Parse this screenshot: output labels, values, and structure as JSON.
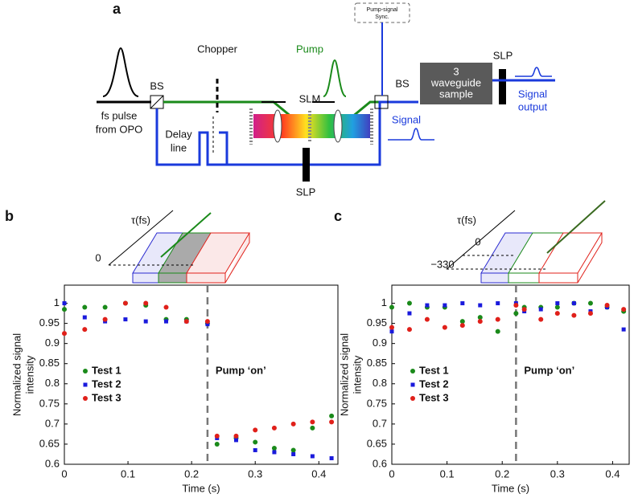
{
  "diagram": {
    "panel_label": "a",
    "source": [
      "fs pulse",
      "from OPO"
    ],
    "bs1": "BS",
    "chopper": "Chopper",
    "pump": "Pump",
    "slm": "SLM",
    "sync": [
      "Pump-signal",
      "Sync."
    ],
    "bs2": "BS",
    "sample": [
      "3",
      "waveguide",
      "sample"
    ],
    "slp_out": "SLP",
    "output": [
      "Signal",
      "output"
    ],
    "signal": "Signal",
    "delay": [
      "Delay",
      "line"
    ],
    "slp": "SLP"
  },
  "chart_data": [
    {
      "type": "scatter",
      "panel_label": "b",
      "inset_axis": "τ(fs)",
      "inset_ticks": [
        "0"
      ],
      "xlabel": "Time (s)",
      "ylabel": [
        "Normalized signal",
        "intensity"
      ],
      "annotation": "Pump ‘on’",
      "event_x": 0.225,
      "xlim": [
        0,
        0.43
      ],
      "ylim": [
        0.6,
        1.045
      ],
      "xticks": [
        0,
        0.1,
        0.2,
        0.3,
        0.4
      ],
      "yticks": [
        0.6,
        0.65,
        0.7,
        0.75,
        0.8,
        0.85,
        0.9,
        0.95,
        1
      ],
      "x": [
        0,
        0.032,
        0.064,
        0.096,
        0.128,
        0.16,
        0.192,
        0.225,
        0.24,
        0.27,
        0.3,
        0.33,
        0.36,
        0.39,
        0.42
      ],
      "series": [
        {
          "name": "Test 1",
          "color": "#1a8a1a",
          "marker": "circle",
          "values": [
            0.985,
            0.99,
            0.99,
            1.0,
            0.995,
            0.96,
            0.96,
            0.95,
            0.65,
            0.665,
            0.655,
            0.64,
            0.635,
            0.69,
            0.72
          ]
        },
        {
          "name": "Test 2",
          "color": "#1a1adc",
          "marker": "square",
          "values": [
            1.0,
            0.965,
            0.955,
            0.96,
            0.955,
            0.955,
            0.955,
            0.948,
            0.665,
            0.66,
            0.635,
            0.63,
            0.625,
            0.62,
            0.615
          ]
        },
        {
          "name": "Test 3",
          "color": "#e0201a",
          "marker": "circle",
          "values": [
            0.925,
            0.935,
            0.96,
            1.0,
            1.0,
            0.99,
            0.955,
            0.955,
            0.67,
            0.67,
            0.685,
            0.69,
            0.7,
            0.705,
            0.705
          ]
        }
      ]
    },
    {
      "type": "scatter",
      "panel_label": "c",
      "inset_axis": "τ(fs)",
      "inset_ticks": [
        "0",
        "−330"
      ],
      "xlabel": "Time (s)",
      "ylabel": [
        "Normalized signal",
        "intensity"
      ],
      "annotation": "Pump ‘on’",
      "event_x": 0.225,
      "xlim": [
        0,
        0.43
      ],
      "ylim": [
        0.6,
        1.045
      ],
      "xticks": [
        0,
        0.1,
        0.2,
        0.3,
        0.4
      ],
      "yticks": [
        0.6,
        0.65,
        0.7,
        0.75,
        0.8,
        0.85,
        0.9,
        0.95,
        1
      ],
      "x": [
        0,
        0.032,
        0.064,
        0.096,
        0.128,
        0.16,
        0.192,
        0.225,
        0.24,
        0.27,
        0.3,
        0.33,
        0.36,
        0.39,
        0.42
      ],
      "series": [
        {
          "name": "Test 1",
          "color": "#1a8a1a",
          "marker": "circle",
          "values": [
            0.99,
            1.0,
            0.99,
            0.99,
            0.955,
            0.965,
            0.93,
            0.975,
            0.99,
            0.99,
            0.99,
            1.0,
            1.0,
            0.99,
            0.98
          ]
        },
        {
          "name": "Test 2",
          "color": "#1a1adc",
          "marker": "square",
          "values": [
            0.93,
            0.975,
            0.995,
            0.995,
            1.0,
            0.995,
            1.0,
            1.0,
            0.98,
            0.985,
            1.0,
            1.0,
            0.98,
            0.99,
            0.935
          ]
        },
        {
          "name": "Test 3",
          "color": "#e0201a",
          "marker": "circle",
          "values": [
            0.94,
            0.935,
            0.96,
            0.94,
            0.945,
            0.955,
            0.96,
            0.995,
            0.985,
            0.96,
            0.975,
            0.97,
            0.975,
            0.995,
            0.985
          ]
        }
      ]
    }
  ]
}
